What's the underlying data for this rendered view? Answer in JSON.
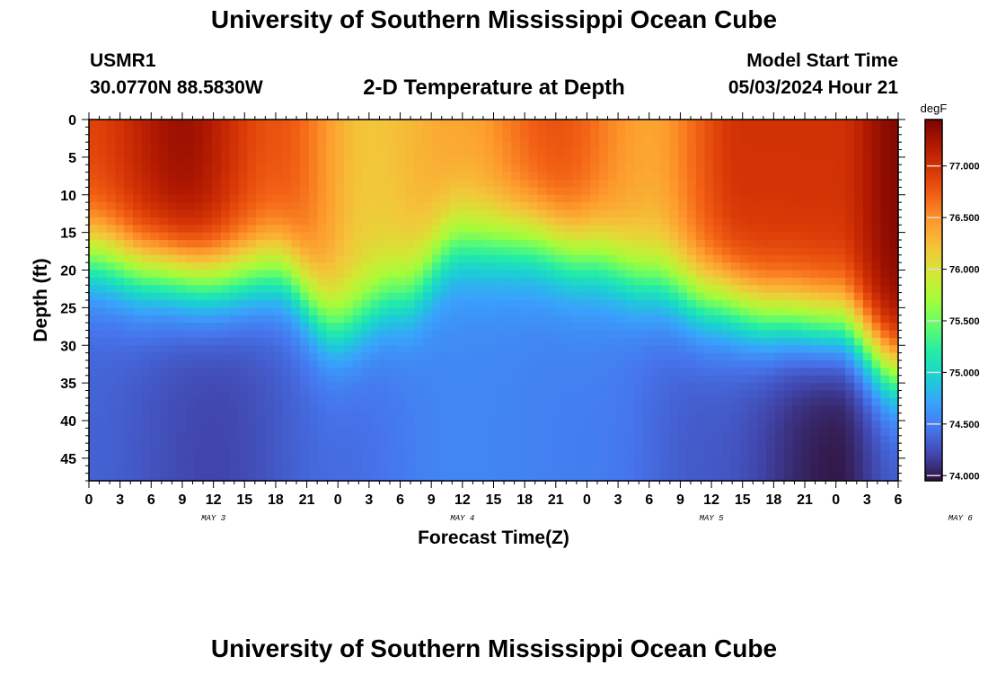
{
  "header": {
    "title": "University of Southern Mississippi Ocean Cube",
    "station": "USMR1",
    "coords": "30.0770N  88.5830W",
    "subtitle": "2-D Temperature at Depth",
    "model_start_label": "Model Start Time",
    "model_start_value": "05/03/2024 Hour 21"
  },
  "footer": {
    "title": "University of Southern Mississippi Ocean Cube"
  },
  "chart_data": {
    "type": "heatmap",
    "title": "2-D Temperature at Depth",
    "xlabel": "Forecast Time(Z)",
    "ylabel": "Depth (ft)",
    "x_tick_labels": [
      "0",
      "3",
      "6",
      "9",
      "12",
      "15",
      "18",
      "21",
      "0",
      "3",
      "6",
      "9",
      "12",
      "15",
      "18",
      "21",
      "0",
      "3",
      "6",
      "9",
      "12",
      "15",
      "18",
      "21",
      "0",
      "3",
      "6"
    ],
    "date_labels": [
      {
        "label": "MAY 3",
        "hour_offset": 12
      },
      {
        "label": "MAY 4",
        "hour_offset": 36
      },
      {
        "label": "MAY 5",
        "hour_offset": 60
      },
      {
        "label": "MAY 6",
        "hour_offset": 84
      }
    ],
    "x_range_hours": [
      0,
      78
    ],
    "y_ticks": [
      0,
      5,
      10,
      15,
      20,
      25,
      30,
      35,
      40,
      45
    ],
    "y_range": [
      0,
      48
    ],
    "y_inverted": true,
    "colorbar": {
      "unit": "degF",
      "range": [
        73.95,
        77.45
      ],
      "ticks": [
        74.0,
        74.5,
        75.0,
        75.5,
        76.0,
        76.5,
        77.0
      ],
      "tick_labels": [
        "74.000",
        "74.500",
        "75.000",
        "75.500",
        "76.000",
        "76.500",
        "77.000"
      ]
    },
    "thermocline_depth_ft": {
      "hours": [
        0,
        6,
        12,
        18,
        24,
        30,
        36,
        42,
        48,
        54,
        60,
        66,
        72,
        78
      ],
      "values": [
        18,
        20,
        21,
        20,
        27,
        23,
        16,
        16,
        18,
        21,
        24,
        26,
        27,
        33
      ]
    },
    "surface_temp_degF": {
      "hours": [
        0,
        9,
        18,
        27,
        36,
        45,
        54,
        63,
        72,
        78
      ],
      "values": [
        76.9,
        77.3,
        76.8,
        76.2,
        76.4,
        76.8,
        76.4,
        77.0,
        77.0,
        77.4
      ]
    },
    "bottom_temp_degF": {
      "hours": [
        0,
        12,
        24,
        36,
        48,
        60,
        72,
        78
      ],
      "values": [
        74.35,
        74.2,
        74.4,
        74.55,
        74.5,
        74.3,
        73.98,
        74.3
      ]
    }
  },
  "colors": {
    "colormap": [
      "#30123b",
      "#4145ab",
      "#4675ed",
      "#39a2fc",
      "#1bcfd4",
      "#24eca6",
      "#61fc6c",
      "#a4fc3b",
      "#d1e834",
      "#f3c63a",
      "#fe9b2d",
      "#f36315",
      "#d93806",
      "#b11901",
      "#7a0402"
    ]
  }
}
